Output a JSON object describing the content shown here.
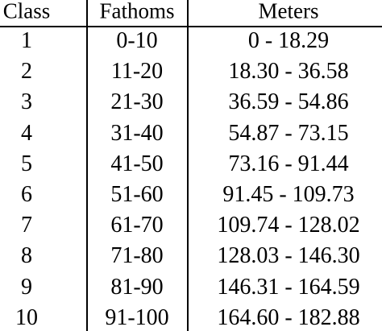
{
  "table": {
    "header": [
      "Class",
      "Fathoms",
      "Meters"
    ],
    "rows": [
      [
        "1",
        "0-10",
        "0 - 18.29"
      ],
      [
        "2",
        "11-20",
        "18.30 - 36.58"
      ],
      [
        "3",
        "21-30",
        "36.59 - 54.86"
      ],
      [
        "4",
        "31-40",
        "54.87 - 73.15"
      ],
      [
        "5",
        "41-50",
        "73.16 - 91.44"
      ],
      [
        "6",
        "51-60",
        "91.45 - 109.73"
      ],
      [
        "7",
        "61-70",
        "109.74 - 128.02"
      ],
      [
        "8",
        "71-80",
        "128.03 - 146.30"
      ],
      [
        "9",
        "81-90",
        "146.31 - 164.59"
      ],
      [
        "10",
        "91-100",
        "164.60 - 182.88"
      ]
    ]
  }
}
